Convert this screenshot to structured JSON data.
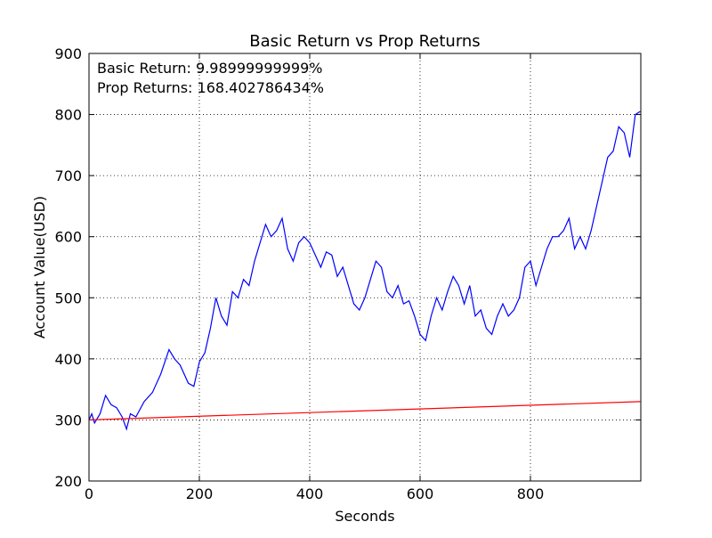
{
  "chart_data": {
    "type": "line",
    "title": "Basic Return vs Prop Returns",
    "xlabel": "Seconds",
    "ylabel": "Account Value(USD)",
    "annotations": [
      "Basic Return: 9.98999999999%",
      "Prop Returns: 168.402786434%"
    ],
    "xlim": [
      0,
      1000
    ],
    "ylim": [
      200,
      900
    ],
    "xticks": [
      0,
      200,
      400,
      600,
      800
    ],
    "yticks": [
      200,
      300,
      400,
      500,
      600,
      700,
      800,
      900
    ],
    "grid": true,
    "series": [
      {
        "color": "#0000ff",
        "x": [
          0,
          5,
          10,
          20,
          30,
          40,
          50,
          60,
          68,
          75,
          85,
          100,
          115,
          130,
          145,
          155,
          165,
          180,
          190,
          200,
          210,
          220,
          230,
          240,
          250,
          260,
          270,
          280,
          290,
          300,
          310,
          320,
          330,
          340,
          350,
          360,
          370,
          380,
          390,
          400,
          410,
          420,
          430,
          440,
          450,
          460,
          470,
          480,
          490,
          500,
          510,
          520,
          530,
          540,
          550,
          560,
          570,
          580,
          590,
          600,
          610,
          620,
          630,
          640,
          650,
          660,
          670,
          680,
          690,
          700,
          710,
          720,
          730,
          740,
          750,
          760,
          770,
          780,
          790,
          800,
          810,
          820,
          830,
          840,
          850,
          860,
          870,
          880,
          890,
          900,
          910,
          920,
          930,
          940,
          950,
          960,
          970,
          980,
          990,
          999
        ],
        "values": [
          300,
          310,
          295,
          310,
          340,
          325,
          320,
          305,
          285,
          310,
          305,
          330,
          345,
          375,
          415,
          400,
          390,
          360,
          355,
          395,
          410,
          450,
          500,
          470,
          455,
          510,
          500,
          530,
          520,
          560,
          590,
          620,
          600,
          610,
          630,
          580,
          560,
          590,
          600,
          590,
          570,
          550,
          575,
          570,
          535,
          550,
          520,
          490,
          480,
          500,
          530,
          560,
          550,
          510,
          500,
          520,
          490,
          495,
          470,
          440,
          430,
          470,
          500,
          480,
          510,
          535,
          520,
          490,
          520,
          470,
          480,
          450,
          440,
          470,
          490,
          470,
          480,
          500,
          550,
          560,
          520,
          550,
          580,
          600,
          600,
          610,
          630,
          580,
          600,
          580,
          610,
          650,
          690,
          730,
          740,
          780,
          770,
          730,
          800,
          805
        ]
      },
      {
        "color": "#ff0000",
        "x": [
          0,
          999
        ],
        "values": [
          300,
          329.97
        ]
      }
    ]
  }
}
